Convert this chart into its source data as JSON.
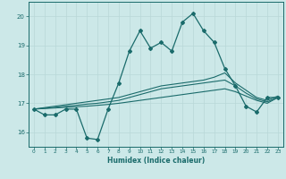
{
  "xlabel": "Humidex (Indice chaleur)",
  "background_color": "#cce8e8",
  "line_color": "#1a6b6b",
  "grid_color_major": "#b8d8d8",
  "grid_color_minor": "#d0e8e8",
  "xmin": -0.5,
  "xmax": 23.5,
  "ymin": 15.5,
  "ymax": 20.5,
  "yticks": [
    16,
    17,
    18,
    19,
    20
  ],
  "xticks": [
    0,
    1,
    2,
    3,
    4,
    5,
    6,
    7,
    8,
    9,
    10,
    11,
    12,
    13,
    14,
    15,
    16,
    17,
    18,
    19,
    20,
    21,
    22,
    23
  ],
  "series_main": [
    16.8,
    16.6,
    16.6,
    16.8,
    16.8,
    15.8,
    15.75,
    16.8,
    17.7,
    18.8,
    19.5,
    18.9,
    19.1,
    18.8,
    19.8,
    20.1,
    19.5,
    19.1,
    18.2,
    17.6,
    16.9,
    16.7,
    17.2,
    17.2
  ],
  "series_trend1": [
    16.8,
    16.82,
    16.84,
    16.86,
    16.88,
    16.9,
    16.93,
    16.96,
    17.0,
    17.05,
    17.1,
    17.15,
    17.2,
    17.25,
    17.3,
    17.35,
    17.4,
    17.45,
    17.5,
    17.4,
    17.25,
    17.1,
    17.0,
    17.2
  ],
  "series_trend2": [
    16.8,
    16.83,
    16.86,
    16.9,
    16.93,
    16.97,
    17.0,
    17.05,
    17.1,
    17.2,
    17.3,
    17.4,
    17.5,
    17.55,
    17.6,
    17.65,
    17.7,
    17.75,
    17.8,
    17.6,
    17.35,
    17.15,
    17.05,
    17.2
  ],
  "series_trend3": [
    16.8,
    16.85,
    16.9,
    16.95,
    17.0,
    17.05,
    17.1,
    17.15,
    17.2,
    17.3,
    17.4,
    17.5,
    17.6,
    17.65,
    17.7,
    17.75,
    17.8,
    17.9,
    18.05,
    17.7,
    17.45,
    17.2,
    17.1,
    17.25
  ]
}
